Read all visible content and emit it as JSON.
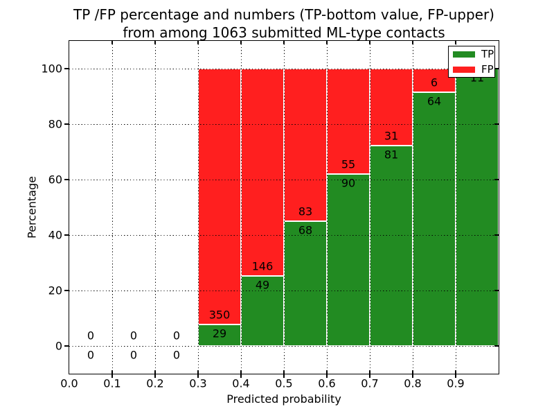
{
  "title": {
    "line1": "TP /FP percentage and numbers (TP-bottom value, FP-upper)",
    "line2": "from among 1063 submitted ML-type contacts"
  },
  "chart_data": {
    "type": "bar",
    "stacked": true,
    "normalized_to_percent": true,
    "title": "TP /FP percentage and numbers (TP-bottom value, FP-upper)\nfrom among 1063 submitted ML-type contacts",
    "xlabel": "Predicted probability",
    "ylabel": "Percentage",
    "xlim": [
      0.0,
      1.0
    ],
    "ylim": [
      -10,
      110
    ],
    "xticks": [
      "0.0",
      "0.1",
      "0.2",
      "0.3",
      "0.4",
      "0.5",
      "0.6",
      "0.7",
      "0.8",
      "0.9"
    ],
    "yticks": [
      "0",
      "20",
      "40",
      "60",
      "80",
      "100"
    ],
    "grid": true,
    "bin_width": 0.1,
    "series_note": "green TP segment drawn from 0 up to tp/(tp+fp)*100 percent, red FP segment fills up to 100 percent; numeric count labels printed at segment boundary (TP below boundary, FP above)",
    "bins": [
      {
        "range": [
          0.0,
          0.1
        ],
        "tp": 0,
        "fp": 0
      },
      {
        "range": [
          0.1,
          0.2
        ],
        "tp": 0,
        "fp": 0
      },
      {
        "range": [
          0.2,
          0.3
        ],
        "tp": 0,
        "fp": 0
      },
      {
        "range": [
          0.3,
          0.4
        ],
        "tp": 29,
        "fp": 350
      },
      {
        "range": [
          0.4,
          0.5
        ],
        "tp": 49,
        "fp": 146
      },
      {
        "range": [
          0.5,
          0.6
        ],
        "tp": 68,
        "fp": 83
      },
      {
        "range": [
          0.6,
          0.7
        ],
        "tp": 90,
        "fp": 55
      },
      {
        "range": [
          0.7,
          0.8
        ],
        "tp": 81,
        "fp": 31
      },
      {
        "range": [
          0.8,
          0.9
        ],
        "tp": 64,
        "fp": 6
      },
      {
        "range": [
          0.9,
          1.0
        ],
        "tp": 11,
        "fp": 0,
        "fp_label_hidden": true
      }
    ],
    "legend": {
      "position": "upper right",
      "entries": [
        {
          "label": "TP",
          "color": "#228B22"
        },
        {
          "label": "FP",
          "color": "#FF1F1F"
        }
      ]
    },
    "colors": {
      "tp": "#228B22",
      "fp": "#FF1F1F",
      "grid": "#000000",
      "text": "#000000",
      "background": "#FFFFFF"
    }
  }
}
